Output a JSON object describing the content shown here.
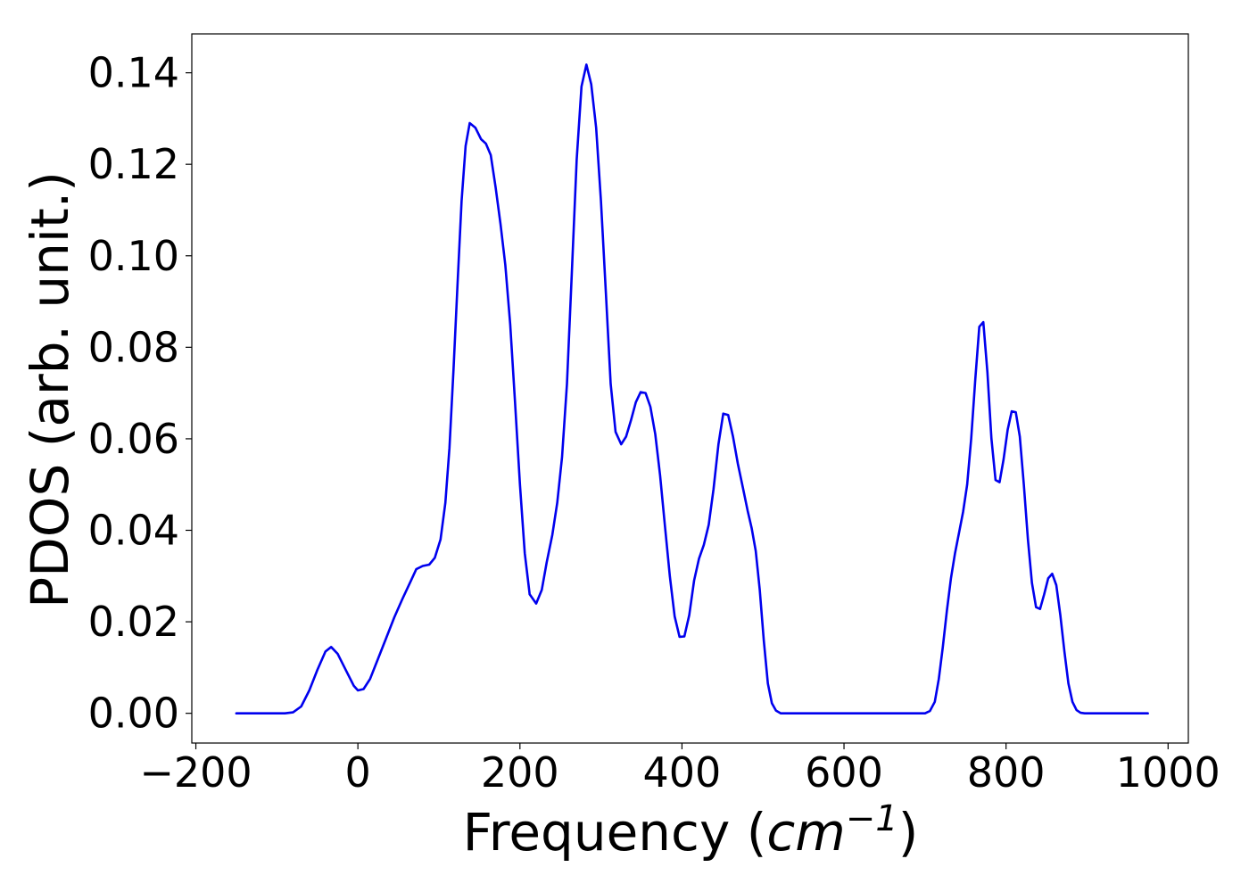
{
  "chart_data": {
    "type": "line",
    "title": "",
    "xlabel": "Frequency",
    "xlabel_unit_base": "cm",
    "xlabel_unit_exp": "−1",
    "ylabel": "PDOS (arb. unit.)",
    "xlim": [
      -205,
      1025
    ],
    "ylim": [
      -0.0065,
      0.1485
    ],
    "xticks": [
      -200,
      0,
      200,
      400,
      600,
      800,
      1000
    ],
    "xtick_labels": [
      "−200",
      "0",
      "200",
      "400",
      "600",
      "800",
      "1000"
    ],
    "yticks": [
      0.0,
      0.02,
      0.04,
      0.06,
      0.08,
      0.1,
      0.12,
      0.14
    ],
    "ytick_labels": [
      "0.00",
      "0.02",
      "0.04",
      "0.06",
      "0.08",
      "0.10",
      "0.12",
      "0.14"
    ],
    "grid": false,
    "series": [
      {
        "color": "#0000ee",
        "points": [
          [
            -150,
            0.0
          ],
          [
            -90,
            0.0
          ],
          [
            -80,
            0.0002
          ],
          [
            -70,
            0.0015
          ],
          [
            -60,
            0.005
          ],
          [
            -50,
            0.0095
          ],
          [
            -40,
            0.0135
          ],
          [
            -33,
            0.0145
          ],
          [
            -25,
            0.013
          ],
          [
            -15,
            0.0095
          ],
          [
            -5,
            0.006
          ],
          [
            0,
            0.005
          ],
          [
            7,
            0.0053
          ],
          [
            15,
            0.0075
          ],
          [
            25,
            0.012
          ],
          [
            35,
            0.0165
          ],
          [
            45,
            0.021
          ],
          [
            55,
            0.025
          ],
          [
            65,
            0.0288
          ],
          [
            72,
            0.0315
          ],
          [
            80,
            0.0322
          ],
          [
            88,
            0.0325
          ],
          [
            95,
            0.034
          ],
          [
            102,
            0.038
          ],
          [
            108,
            0.046
          ],
          [
            113,
            0.058
          ],
          [
            118,
            0.075
          ],
          [
            123,
            0.094
          ],
          [
            128,
            0.112
          ],
          [
            133,
            0.124
          ],
          [
            138,
            0.129
          ],
          [
            145,
            0.128
          ],
          [
            152,
            0.1255
          ],
          [
            158,
            0.1245
          ],
          [
            164,
            0.122
          ],
          [
            170,
            0.115
          ],
          [
            176,
            0.107
          ],
          [
            182,
            0.098
          ],
          [
            188,
            0.085
          ],
          [
            194,
            0.068
          ],
          [
            200,
            0.05
          ],
          [
            206,
            0.035
          ],
          [
            212,
            0.026
          ],
          [
            220,
            0.024
          ],
          [
            227,
            0.027
          ],
          [
            233,
            0.033
          ],
          [
            240,
            0.039
          ],
          [
            246,
            0.046
          ],
          [
            252,
            0.056
          ],
          [
            258,
            0.072
          ],
          [
            264,
            0.096
          ],
          [
            270,
            0.121
          ],
          [
            276,
            0.137
          ],
          [
            282,
            0.1418
          ],
          [
            288,
            0.1375
          ],
          [
            294,
            0.128
          ],
          [
            300,
            0.112
          ],
          [
            306,
            0.092
          ],
          [
            312,
            0.072
          ],
          [
            318,
            0.0615
          ],
          [
            325,
            0.0588
          ],
          [
            331,
            0.0605
          ],
          [
            337,
            0.064
          ],
          [
            343,
            0.068
          ],
          [
            349,
            0.0702
          ],
          [
            355,
            0.07
          ],
          [
            361,
            0.067
          ],
          [
            367,
            0.061
          ],
          [
            373,
            0.052
          ],
          [
            379,
            0.041
          ],
          [
            385,
            0.03
          ],
          [
            391,
            0.0212
          ],
          [
            397,
            0.0167
          ],
          [
            403,
            0.0168
          ],
          [
            409,
            0.0215
          ],
          [
            415,
            0.029
          ],
          [
            421,
            0.0338
          ],
          [
            427,
            0.0368
          ],
          [
            433,
            0.0412
          ],
          [
            439,
            0.049
          ],
          [
            445,
            0.0588
          ],
          [
            451,
            0.0655
          ],
          [
            457,
            0.0652
          ],
          [
            463,
            0.0605
          ],
          [
            469,
            0.0545
          ],
          [
            475,
            0.0495
          ],
          [
            481,
            0.0443
          ],
          [
            486,
            0.0405
          ],
          [
            491,
            0.0355
          ],
          [
            496,
            0.027
          ],
          [
            501,
            0.016
          ],
          [
            506,
            0.0065
          ],
          [
            511,
            0.0022
          ],
          [
            516,
            0.0006
          ],
          [
            522,
            0.0
          ],
          [
            700,
            0.0
          ],
          [
            706,
            0.0005
          ],
          [
            712,
            0.0025
          ],
          [
            717,
            0.0075
          ],
          [
            722,
            0.0145
          ],
          [
            727,
            0.0225
          ],
          [
            732,
            0.0295
          ],
          [
            737,
            0.035
          ],
          [
            742,
            0.0395
          ],
          [
            747,
            0.044
          ],
          [
            752,
            0.05
          ],
          [
            757,
            0.06
          ],
          [
            762,
            0.073
          ],
          [
            767,
            0.0845
          ],
          [
            772,
            0.0855
          ],
          [
            777,
            0.0745
          ],
          [
            782,
            0.06
          ],
          [
            787,
            0.051
          ],
          [
            792,
            0.0505
          ],
          [
            797,
            0.0555
          ],
          [
            802,
            0.062
          ],
          [
            807,
            0.066
          ],
          [
            812,
            0.0658
          ],
          [
            817,
            0.0605
          ],
          [
            822,
            0.05
          ],
          [
            827,
            0.038
          ],
          [
            832,
            0.0285
          ],
          [
            837,
            0.0232
          ],
          [
            842,
            0.0228
          ],
          [
            847,
            0.026
          ],
          [
            852,
            0.0295
          ],
          [
            857,
            0.0305
          ],
          [
            862,
            0.028
          ],
          [
            867,
            0.0215
          ],
          [
            872,
            0.0135
          ],
          [
            877,
            0.0065
          ],
          [
            882,
            0.0025
          ],
          [
            887,
            0.0007
          ],
          [
            892,
            0.0001
          ],
          [
            897,
            0.0
          ],
          [
            975,
            0.0
          ]
        ]
      }
    ]
  }
}
